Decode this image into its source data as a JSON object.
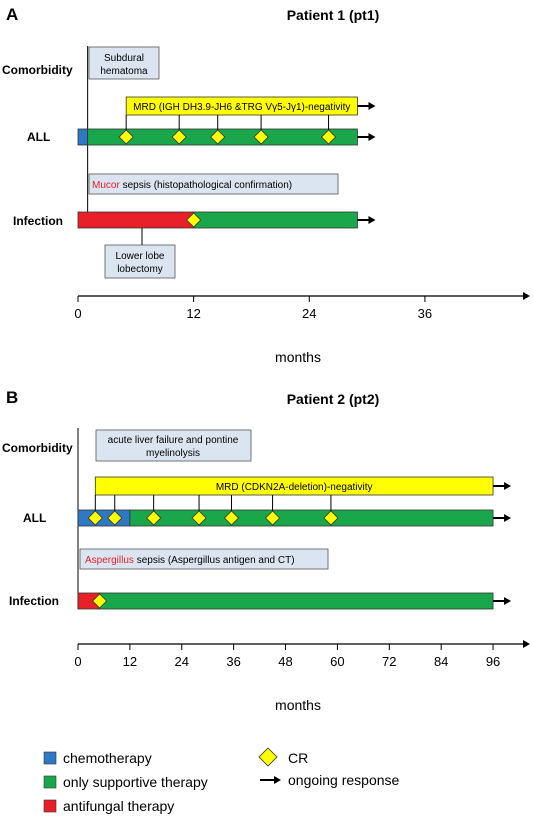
{
  "panel_a": {
    "letter": "A",
    "title": "Patient 1 (pt1)",
    "row_labels": {
      "comorbidity": "Comorbidity",
      "all": "ALL",
      "infection": "Infection"
    },
    "subdural_1": "Subdural",
    "subdural_2": "hematoma",
    "mrd": "MRD (IGH DH3.9-JH6 &TRG Vγ5-Jγ1)-negativity",
    "sepsis_red": "Mucor",
    "sepsis_rest": " sepsis (histopathological confirmation)",
    "lobectomy_1": "Lower lobe",
    "lobectomy_2": "lobectomy",
    "axis_max": 44,
    "ticks": [
      "0",
      "12",
      "24",
      "36"
    ],
    "tick_values": [
      0,
      12,
      24,
      36
    ],
    "xlabel": "months",
    "all_chemo_end": 1,
    "all_end": 29,
    "infection_antifungal_end": 12,
    "infection_end": 29,
    "mrd_start": 5,
    "mrd_end": 29,
    "cr_all": [
      5,
      10.5,
      14.5,
      19,
      26
    ],
    "cr_infection": [
      12
    ]
  },
  "panel_b": {
    "letter": "B",
    "title": "Patient 2 (pt2)",
    "row_labels": {
      "comorbidity": "Comorbidity",
      "all": "ALL",
      "infection": "Infection"
    },
    "comorb_1": "acute liver failure and pontine",
    "comorb_2": "myelinolysis",
    "mrd": "MRD (CDKN2A-deletion)-negativity",
    "sepsis_red": "Aspergillus",
    "sepsis_rest": " sepsis (Aspergillus antigen and CT)",
    "axis_max": 102,
    "ticks": [
      "0",
      "12",
      "24",
      "36",
      "48",
      "60",
      "72",
      "84",
      "96"
    ],
    "tick_values": [
      0,
      12,
      24,
      36,
      48,
      60,
      72,
      84,
      96
    ],
    "xlabel": "months",
    "all_chemo_end": 12,
    "all_end": 96,
    "infection_antifungal_end": 5,
    "infection_end": 96,
    "mrd_start": 4,
    "mrd_end": 96,
    "cr_all": [
      4,
      8.5,
      17.5,
      28,
      35.5,
      45,
      58.5
    ],
    "cr_infection": [
      5
    ]
  },
  "legend": {
    "chemo": "chemotherapy",
    "supportive": "only supportive therapy",
    "antifungal": "antifungal therapy",
    "cr": "CR",
    "ongoing": "ongoing response"
  },
  "colors": {
    "chemo": "#2f78c4",
    "supportive": "#1aa64a",
    "antifungal": "#e8202a",
    "mrd": "#ffff00",
    "cr": "#ffff00",
    "note_box": "#dbe5f1"
  }
}
